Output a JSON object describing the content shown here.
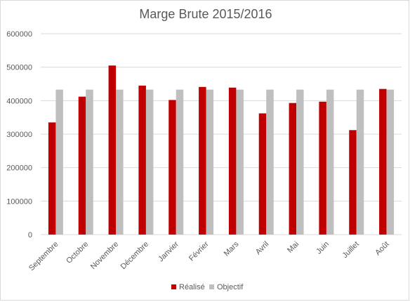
{
  "colors": {
    "realise": "#c00000",
    "objectif": "#bfbfbf",
    "grid": "#d9d9d9",
    "text": "#595959"
  },
  "chart_data": {
    "type": "bar",
    "title": "Marge Brute 2015/2016",
    "xlabel": "",
    "ylabel": "",
    "ylim": [
      0,
      600000
    ],
    "yticks": [
      "0",
      "100000",
      "200000",
      "300000",
      "400000",
      "500000",
      "600000"
    ],
    "grid": true,
    "legend_position": "bottom",
    "categories": [
      "Septembre",
      "Octobre",
      "Novembre",
      "Décembre",
      "Janvier",
      "Février",
      "Mars",
      "Avril",
      "Mai",
      "Juin",
      "Juillet",
      "Août"
    ],
    "series": [
      {
        "name": "Réalisé",
        "color": "#c00000",
        "values": [
          335000,
          412000,
          505000,
          445000,
          402000,
          441000,
          439000,
          362000,
          393000,
          397000,
          312000,
          435000
        ]
      },
      {
        "name": "Objectif",
        "color": "#bfbfbf",
        "values": [
          433000,
          433000,
          433000,
          433000,
          433000,
          433000,
          433000,
          433000,
          433000,
          433000,
          433000,
          433000
        ]
      }
    ]
  }
}
